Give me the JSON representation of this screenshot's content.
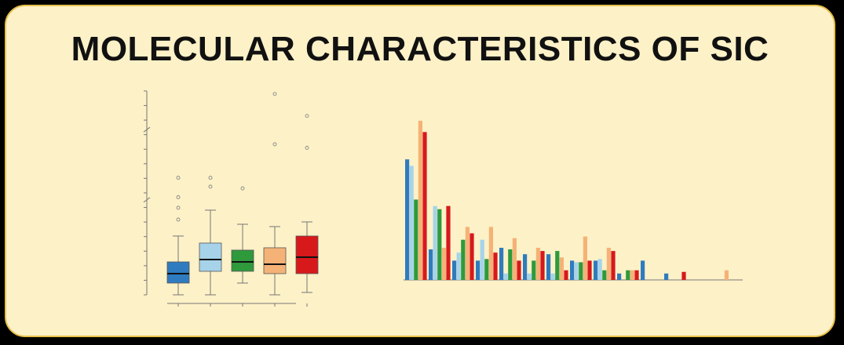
{
  "title": "MOLECULAR CHARACTERISTICS OF SIC",
  "colors": {
    "background": "#000000",
    "panel": "#fdf1c7",
    "panel_border": "#e7c04a"
  },
  "chart_data": [
    {
      "type": "box",
      "title": "",
      "xlabel": "",
      "ylabel": "",
      "axis_breaks": 2,
      "grid": false,
      "series": [
        {
          "color": "#2f7bbf",
          "whisker_low": 0.0,
          "q1": 0.5,
          "median": 0.9,
          "q3": 1.4,
          "whisker_high": 2.5,
          "outliers": [
            3.2,
            3.7,
            4.2,
            5.3
          ]
        },
        {
          "color": "#a6d3ea",
          "whisker_low": 0.0,
          "q1": 1.0,
          "median": 1.5,
          "q3": 2.2,
          "whisker_high": 3.6,
          "outliers": [
            4.8,
            5.3
          ]
        },
        {
          "color": "#2e9a3c",
          "whisker_low": 0.5,
          "q1": 1.0,
          "median": 1.4,
          "q3": 1.9,
          "whisker_high": 3.0,
          "outliers": [
            4.7
          ]
        },
        {
          "color": "#f5b277",
          "whisker_low": 0.0,
          "q1": 0.9,
          "median": 1.3,
          "q3": 2.0,
          "whisker_high": 2.9,
          "outliers": [
            7.2,
            11.3
          ]
        },
        {
          "color": "#d7191c",
          "whisker_low": 0.1,
          "q1": 0.9,
          "median": 1.6,
          "q3": 2.5,
          "whisker_high": 3.1,
          "outliers": [
            7.0,
            9.3
          ]
        }
      ]
    },
    {
      "type": "bar",
      "title": "",
      "xlabel": "",
      "ylabel": "",
      "grid": false,
      "legend": "none",
      "ylim": [
        0,
        100
      ],
      "categories": [
        "",
        "",
        "",
        "",
        "",
        "",
        "",
        "",
        "",
        "",
        "",
        "",
        ""
      ],
      "series": [
        {
          "color": "#2f7bbf",
          "values": [
            75,
            19,
            12,
            12,
            20,
            16,
            16,
            12,
            12,
            4,
            12,
            4,
            0
          ]
        },
        {
          "color": "#a6d3ea",
          "values": [
            71,
            46,
            17,
            25,
            4,
            4,
            4,
            11,
            13,
            0,
            0,
            0,
            0
          ]
        },
        {
          "color": "#2e9a3c",
          "values": [
            50,
            44,
            25,
            13,
            19,
            12,
            18,
            11,
            6,
            6,
            0,
            0,
            0
          ]
        },
        {
          "color": "#f5b277",
          "values": [
            99,
            20,
            33,
            33,
            26,
            20,
            14,
            27,
            20,
            6,
            0,
            0,
            6
          ]
        },
        {
          "color": "#d7191c",
          "values": [
            92,
            46,
            29,
            17,
            12,
            18,
            6,
            12,
            18,
            6,
            0,
            5,
            0
          ]
        }
      ]
    }
  ]
}
